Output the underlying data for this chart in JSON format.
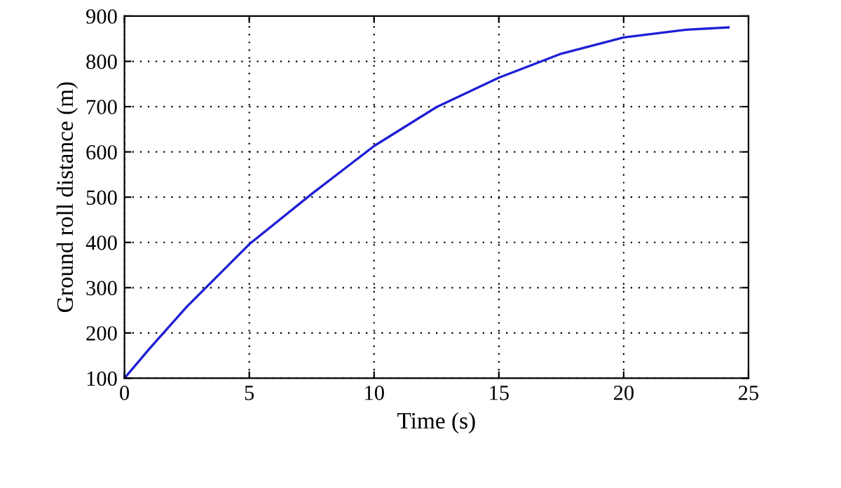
{
  "chart_data": {
    "type": "line",
    "xlabel": "Time (s)",
    "ylabel": "Ground roll distance (m)",
    "x": [
      0,
      1,
      2.5,
      5,
      7.5,
      10,
      12.5,
      15,
      17.5,
      20,
      22.5,
      24.2
    ],
    "series": [
      {
        "color": "#1f1fd6",
        "values": [
          100,
          165,
          258,
          396,
          507,
          613,
          699,
          764,
          817,
          853,
          870,
          875
        ]
      }
    ],
    "xlim": [
      0,
      25
    ],
    "xticks": [
      0,
      5,
      10,
      15,
      20,
      25
    ],
    "ylim": [
      100,
      900
    ],
    "yticks": [
      100,
      200,
      300,
      400,
      500,
      600,
      700,
      800,
      900
    ],
    "grid": true,
    "line_style": "solid",
    "legend": false
  }
}
